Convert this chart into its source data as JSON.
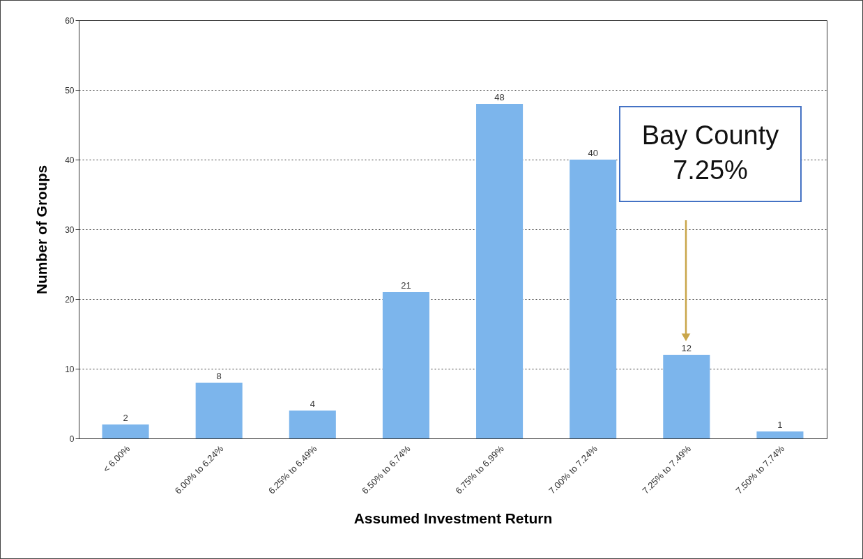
{
  "chart_data": {
    "type": "bar",
    "xlabel": "Assumed Investment Return",
    "ylabel": "Number of Groups",
    "categories": [
      "< 6.00%",
      "6.00% to 6.24%",
      "6.25% to 6.49%",
      "6.50% to 6.74%",
      "6.75% to 6.99%",
      "7.00% to 7.24%",
      "7.25% to 7.49%",
      "7.50% to 7.74%"
    ],
    "values": [
      2,
      8,
      4,
      21,
      48,
      40,
      12,
      1
    ],
    "color": "#7cb5ec",
    "ylim": [
      0,
      60
    ],
    "yticks": [
      0,
      10,
      20,
      30,
      40,
      50,
      60
    ],
    "grid": "y",
    "data_labels": true,
    "annotations": [
      "Bay County\n7.25%"
    ]
  }
}
